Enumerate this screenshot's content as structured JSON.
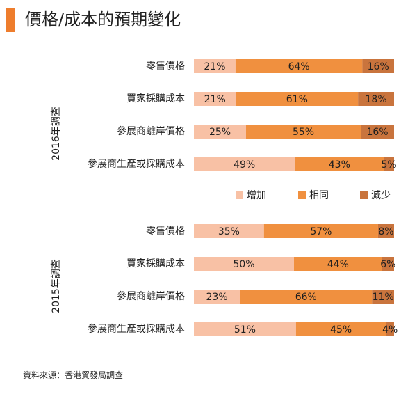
{
  "title": "價格/成本的預期變化",
  "source": "資料來源：香港貿發局調查",
  "colors": {
    "accent": "#ee7d2d",
    "increase": "#f8c1a5",
    "same": "#f0903f",
    "decrease": "#c9743d"
  },
  "chart_data": [
    {
      "type": "bar",
      "orientation": "horizontal",
      "stacked": true,
      "group_label": "2016年調查",
      "categories": [
        "零售價格",
        "買家採購成本",
        "參展商離岸價格",
        "參展商生產或採購成本"
      ],
      "series": [
        {
          "name": "增加",
          "values": [
            21,
            21,
            25,
            49
          ],
          "labels": [
            "21%",
            "21%",
            "25%",
            "49%"
          ]
        },
        {
          "name": "相同",
          "values": [
            64,
            61,
            55,
            43
          ],
          "labels": [
            "64%",
            "61%",
            "55%",
            "43%"
          ]
        },
        {
          "name": "減少",
          "values": [
            16,
            18,
            16,
            5
          ],
          "labels": [
            "16%",
            "18%",
            "16%",
            "5%"
          ]
        }
      ],
      "xlim": [
        0,
        100
      ]
    },
    {
      "type": "bar",
      "orientation": "horizontal",
      "stacked": true,
      "group_label": "2015年調查",
      "categories": [
        "零售價格",
        "買家採購成本",
        "參展商離岸價格",
        "參展商生產或採購成本"
      ],
      "series": [
        {
          "name": "增加",
          "values": [
            35,
            50,
            23,
            51
          ],
          "labels": [
            "35%",
            "50%",
            "23%",
            "51%"
          ]
        },
        {
          "name": "相同",
          "values": [
            57,
            44,
            66,
            45
          ],
          "labels": [
            "57%",
            "44%",
            "66%",
            "45%"
          ]
        },
        {
          "name": "減少",
          "values": [
            8,
            6,
            11,
            4
          ],
          "labels": [
            "8%",
            "6%",
            "11%",
            "4%"
          ]
        }
      ],
      "xlim": [
        0,
        100
      ]
    }
  ],
  "legend": {
    "position": "center-between-groups",
    "items": [
      {
        "label": "增加",
        "color": "#f8c1a5"
      },
      {
        "label": "相同",
        "color": "#f0903f"
      },
      {
        "label": "減少",
        "color": "#c9743d"
      }
    ]
  }
}
